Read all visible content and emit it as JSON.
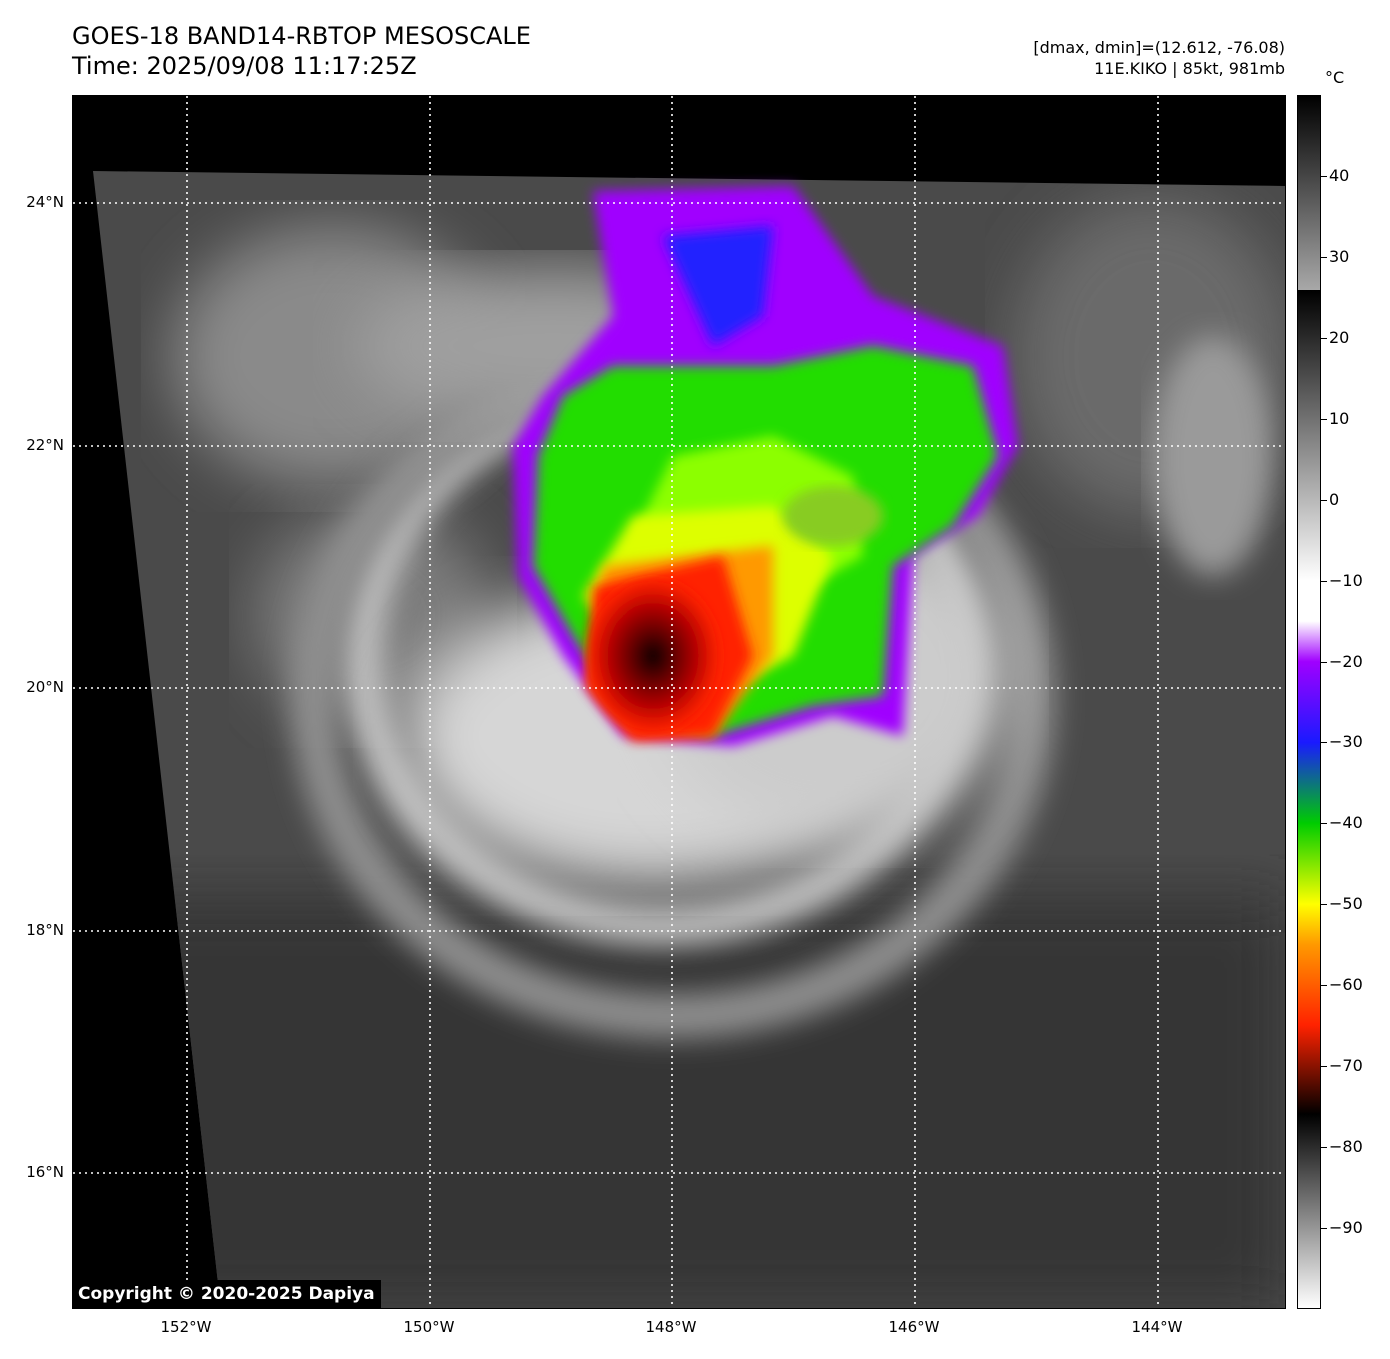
{
  "title_line1": "GOES-18 BAND14-RBTOP MESOSCALE",
  "title_line2": "Time: 2025/09/08 11:17:25Z",
  "info_line1": "[dmax, dmin]=(12.612, -76.08)",
  "info_line2": "11E.KIKO | 85kt, 981mb",
  "copyright": "Copyright © 2020-2025 Dapiya",
  "latitude_labels": [
    "24°N",
    "22°N",
    "20°N",
    "18°N",
    "16°N"
  ],
  "longitude_labels": [
    "152°W",
    "150°W",
    "148°W",
    "146°W",
    "144°W"
  ],
  "colorbar": {
    "unit": "°C",
    "tick_labels": [
      "40",
      "30",
      "20",
      "10",
      "0",
      "−10",
      "−20",
      "−30",
      "−40",
      "−50",
      "−60",
      "−70",
      "−80",
      "−90"
    ],
    "tick_values": [
      40,
      30,
      20,
      10,
      0,
      -10,
      -20,
      -30,
      -40,
      -50,
      -60,
      -70,
      -80,
      -90
    ],
    "range": [
      -100,
      50
    ]
  },
  "colors": {
    "cold_core": "#8b0000",
    "ring_red": "#ff2200",
    "orange": "#ff9900",
    "yellow": "#ffff00",
    "green": "#22dd00",
    "blue": "#1a1aff",
    "purple": "#b000ff",
    "gridline": "#ffffff"
  }
}
